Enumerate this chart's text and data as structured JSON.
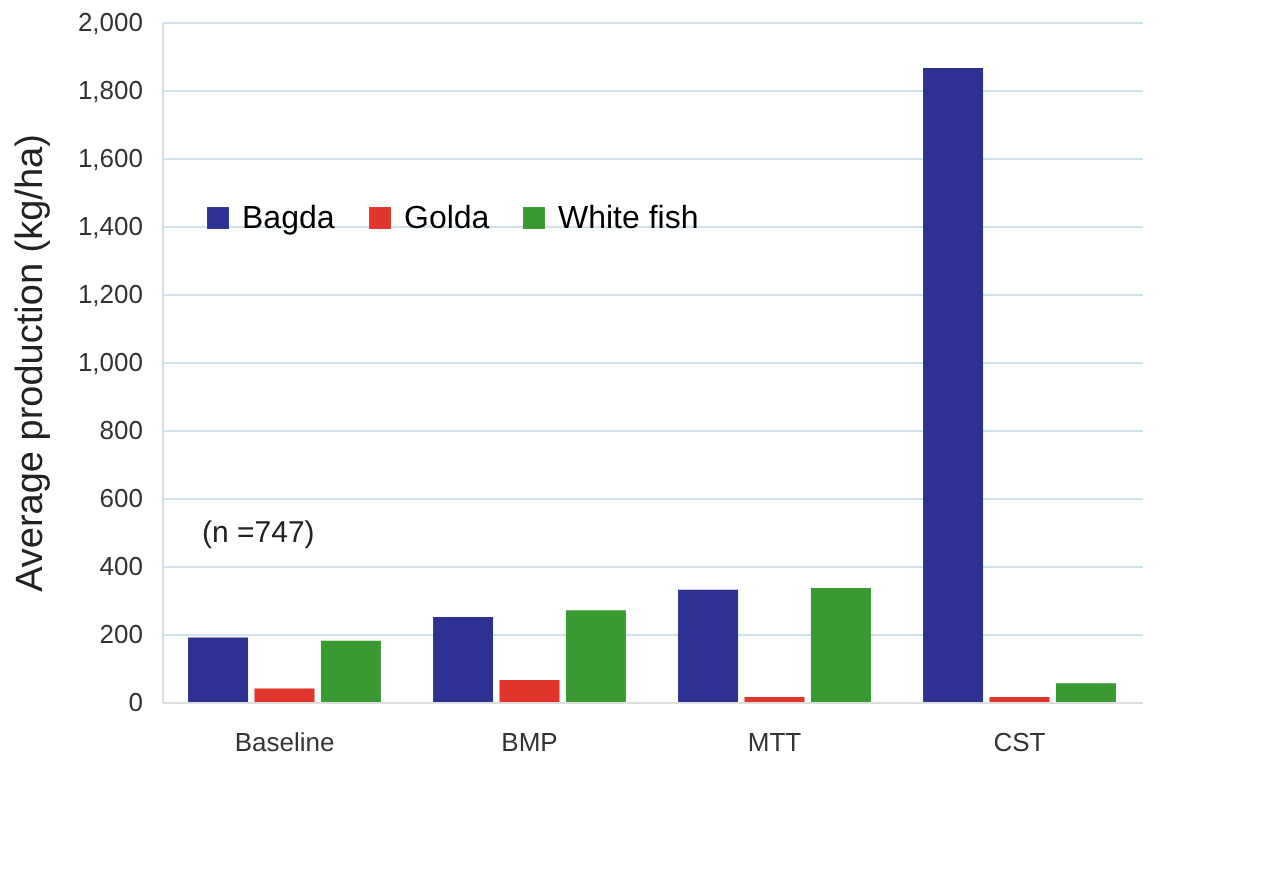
{
  "chart_data": {
    "type": "bar",
    "ylabel": "Average production (kg/ha)",
    "categories": [
      "Baseline",
      "BMP",
      "MTT",
      "CST"
    ],
    "series": [
      {
        "name": "Bagda",
        "color": "#2e3192",
        "values": [
          190,
          250,
          330,
          1865
        ]
      },
      {
        "name": "Golda",
        "color": "#e0352b",
        "values": [
          40,
          65,
          15,
          15
        ]
      },
      {
        "name": "White fish",
        "color": "#3a9a32",
        "values": [
          180,
          270,
          335,
          55
        ]
      }
    ],
    "ylim": [
      0,
      2000
    ],
    "yticks": [
      {
        "value": 0,
        "label": "0"
      },
      {
        "value": 200,
        "label": "200"
      },
      {
        "value": 400,
        "label": "400"
      },
      {
        "value": 600,
        "label": "600"
      },
      {
        "value": 800,
        "label": "800"
      },
      {
        "value": 1000,
        "label": "1,000"
      },
      {
        "value": 1200,
        "label": "1,200"
      },
      {
        "value": 1400,
        "label": "1,400"
      },
      {
        "value": 1600,
        "label": "1,600"
      },
      {
        "value": 1800,
        "label": "1,800"
      },
      {
        "value": 2000,
        "label": "2,000"
      }
    ],
    "grid": "y",
    "legend": "top left",
    "annotations": [
      "(n =747)"
    ]
  }
}
